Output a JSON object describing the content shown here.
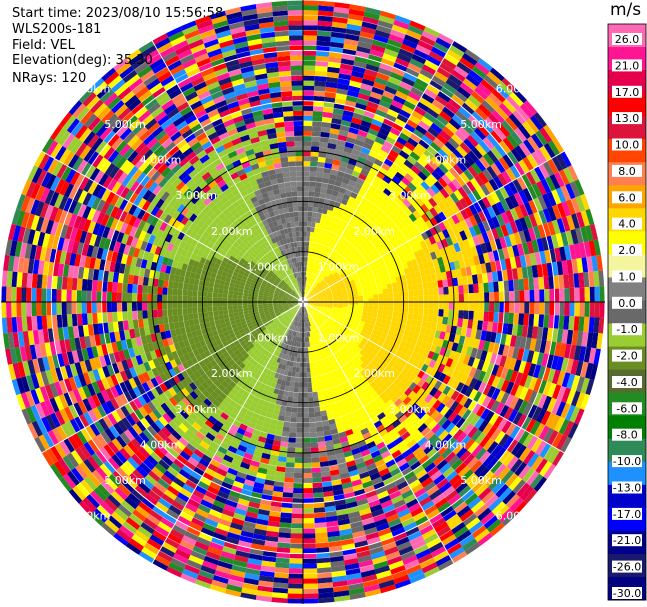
{
  "info": {
    "start_time": "Start time: 2023/08/10 15:56:58",
    "radar": "WLS200s-181",
    "field": "Field: VEL",
    "elevation": "Elevation(deg): 35.30",
    "nrays": "NRays: 120"
  },
  "chart_data": {
    "type": "heatmap",
    "title": "",
    "field": "VEL",
    "projection": "polar",
    "n_rays": 120,
    "range_rings_km": [
      1,
      2,
      3,
      4,
      5,
      6
    ],
    "range_ring_labels": [
      "1.00km",
      "2.00km",
      "3.00km",
      "4.00km",
      "5.00km",
      "6.00km"
    ],
    "colorbar": {
      "unit": "m/s",
      "range": [
        -30,
        30
      ],
      "ticks": [
        26.0,
        21.0,
        17.0,
        13.0,
        10.0,
        8.0,
        6.0,
        4.0,
        2.0,
        1.0,
        0.0,
        -1.0,
        -2.0,
        -4.0,
        -6.0,
        -8.0,
        -10.0,
        -13.0,
        -17.0,
        -21.0,
        -26.0,
        -30.0
      ],
      "tick_labels": [
        "26.0",
        "21.0",
        "17.0",
        "13.0",
        "10.0",
        "8.0",
        "6.0",
        "4.0",
        "2.0",
        "1.0",
        "0.0",
        "-1.0",
        "-2.0",
        "-4.0",
        "-6.0",
        "-8.0",
        "-10.0",
        "-13.0",
        "-17.0",
        "-21.0",
        "-26.0",
        "-30.0"
      ],
      "colors": [
        "#ff69b4",
        "#ff1493",
        "#e6004c",
        "#ff0000",
        "#dc143c",
        "#ff4500",
        "#ff7f50",
        "#ffa500",
        "#ffd700",
        "#ffff00",
        "#f5f5a0",
        "#808080",
        "#696969",
        "#9acd32",
        "#6b8e23",
        "#556b2f",
        "#228b22",
        "#008000",
        "#2e8b57",
        "#1e90ff",
        "#0000cd",
        "#0000ff",
        "#00008b",
        "#191970",
        "#000080"
      ]
    }
  }
}
